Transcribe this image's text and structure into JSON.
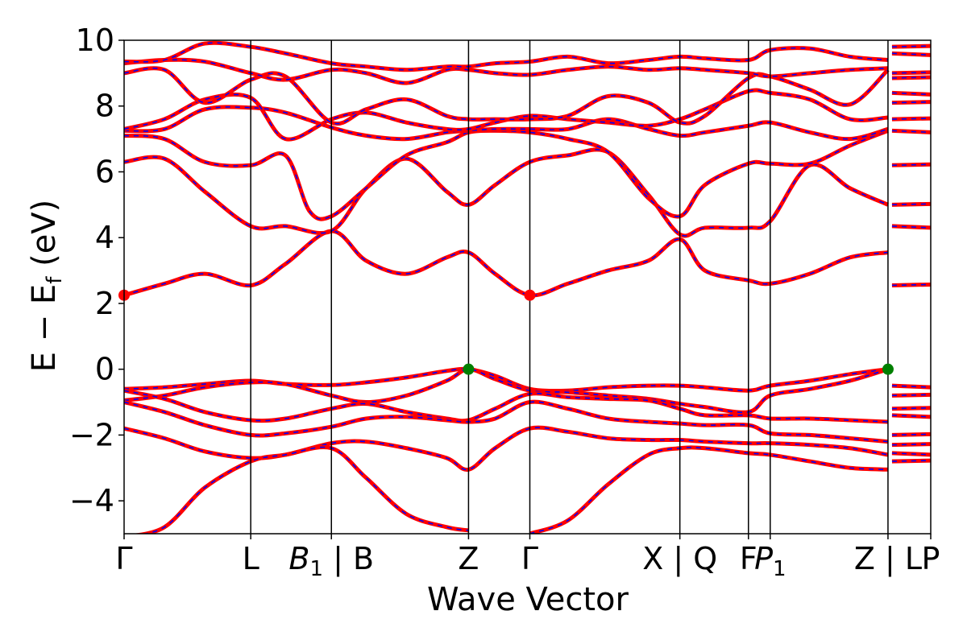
{
  "chart_data": {
    "type": "line",
    "xlabel": "Wave Vector",
    "ylabel": "E − E_f (eV)",
    "ylabel_parts": {
      "main": "E − E",
      "sub": "f",
      "unit": " (eV)"
    },
    "ylim": [
      -5,
      10
    ],
    "yticks": [
      {
        "value": 10,
        "label": "10"
      },
      {
        "value": 8,
        "label": "8"
      },
      {
        "value": 6,
        "label": "6"
      },
      {
        "value": 4,
        "label": "4"
      },
      {
        "value": 2,
        "label": "2"
      },
      {
        "value": 0,
        "label": "0"
      },
      {
        "value": -2,
        "label": "−2"
      },
      {
        "value": -4,
        "label": "−4"
      }
    ],
    "kpoints": [
      {
        "label": "Γ",
        "pos": 0.0
      },
      {
        "label": "L",
        "pos": 0.157
      },
      {
        "label": "B",
        "sub": "1",
        "suffix": " | B",
        "pos": 0.257
      },
      {
        "label": "Z",
        "pos": 0.427
      },
      {
        "label": "Γ",
        "pos": 0.503
      },
      {
        "label": "X | Q",
        "pos": 0.689
      },
      {
        "label": "F",
        "pos": 0.774
      },
      {
        "label": "P",
        "sub": "1",
        "pos": 0.801
      },
      {
        "label": "Z | L",
        "pos": 0.947
      },
      {
        "label": "P",
        "pos": 1.0
      }
    ],
    "x_range": [
      0,
      1
    ],
    "grid": false,
    "legend": "none",
    "colors": {
      "band_main": "#ff0000",
      "band_dash": "#0000ff",
      "vbm": "#007f00",
      "cbm": "#ff0000"
    },
    "series": [
      {
        "x": [
          0,
          0.05,
          0.1,
          0.157,
          0.2,
          0.257,
          0.3,
          0.35,
          0.4,
          0.427,
          0.46,
          0.503,
          0.55,
          0.6,
          0.65,
          0.689,
          0.72,
          0.774,
          0.801,
          0.85,
          0.9,
          0.947
        ],
        "y": [
          -0.6,
          -0.55,
          -0.45,
          -0.35,
          -0.45,
          -0.48,
          -0.4,
          -0.25,
          -0.05,
          0.0,
          -0.2,
          -0.6,
          -0.65,
          -0.55,
          -0.5,
          -0.5,
          -0.55,
          -0.65,
          -0.5,
          -0.35,
          -0.15,
          0.0
        ]
      },
      {
        "x": [
          0,
          0.05,
          0.1,
          0.157,
          0.2,
          0.257,
          0.3,
          0.35,
          0.4,
          0.427,
          0.46,
          0.503,
          0.55,
          0.6,
          0.65,
          0.689,
          0.72,
          0.774,
          0.801,
          0.85,
          0.9,
          0.947
        ],
        "y": [
          -0.95,
          -0.8,
          -0.55,
          -0.4,
          -0.45,
          -0.8,
          -1.0,
          -0.8,
          -0.35,
          0.0,
          -0.3,
          -0.65,
          -0.7,
          -0.8,
          -0.9,
          -1.05,
          -1.15,
          -1.3,
          -0.8,
          -0.6,
          -0.35,
          0.0
        ]
      },
      {
        "x": [
          0,
          0.05,
          0.1,
          0.157,
          0.2,
          0.257,
          0.3,
          0.35,
          0.4,
          0.427,
          0.46,
          0.503,
          0.55,
          0.6,
          0.65,
          0.689,
          0.72,
          0.774,
          0.801,
          0.85,
          0.9,
          0.947
        ],
        "y": [
          -0.65,
          -0.9,
          -1.3,
          -1.55,
          -1.5,
          -1.2,
          -1.05,
          -1.3,
          -1.5,
          -1.55,
          -1.2,
          -0.75,
          -0.85,
          -0.9,
          -0.95,
          -1.2,
          -1.4,
          -1.4,
          -1.5,
          -1.5,
          -1.55,
          -1.6
        ]
      },
      {
        "x": [
          0,
          0.05,
          0.1,
          0.157,
          0.2,
          0.257,
          0.3,
          0.35,
          0.4,
          0.427,
          0.46,
          0.503,
          0.55,
          0.6,
          0.65,
          0.689,
          0.72,
          0.774,
          0.801,
          0.85,
          0.9,
          0.947
        ],
        "y": [
          -1.0,
          -1.3,
          -1.7,
          -2.0,
          -1.95,
          -1.75,
          -1.5,
          -1.45,
          -1.55,
          -1.6,
          -1.5,
          -1.0,
          -1.2,
          -1.5,
          -1.6,
          -1.65,
          -1.7,
          -1.7,
          -1.95,
          -2.0,
          -2.1,
          -2.2
        ]
      },
      {
        "x": [
          0,
          0.05,
          0.1,
          0.157,
          0.2,
          0.257,
          0.3,
          0.35,
          0.4,
          0.427,
          0.46,
          0.503,
          0.55,
          0.6,
          0.65,
          0.689,
          0.72,
          0.774,
          0.801,
          0.85,
          0.9,
          0.947
        ],
        "y": [
          -1.8,
          -2.1,
          -2.5,
          -2.7,
          -2.6,
          -2.25,
          -2.2,
          -2.4,
          -2.7,
          -3.05,
          -2.4,
          -1.8,
          -1.9,
          -2.1,
          -2.15,
          -2.15,
          -2.2,
          -2.25,
          -2.25,
          -2.3,
          -2.4,
          -2.6
        ]
      },
      {
        "x": [
          0,
          0.05,
          0.1,
          0.157,
          0.2,
          0.257,
          0.3,
          0.35,
          0.4,
          0.427
        ],
        "y": [
          -5.1,
          -4.8,
          -3.6,
          -2.8,
          -2.6,
          -2.4,
          -3.3,
          -4.4,
          -4.8,
          -4.9
        ]
      },
      {
        "x": [
          0.503,
          0.55,
          0.6,
          0.65,
          0.689,
          0.72,
          0.774,
          0.801,
          0.85,
          0.9,
          0.947
        ],
        "y": [
          -5.0,
          -4.6,
          -3.5,
          -2.6,
          -2.4,
          -2.4,
          -2.55,
          -2.6,
          -2.8,
          -3.0,
          -3.05
        ]
      },
      {
        "x": [
          0,
          0.05,
          0.1,
          0.157,
          0.2,
          0.257,
          0.3,
          0.35,
          0.4,
          0.427,
          0.46,
          0.503,
          0.55,
          0.6,
          0.65,
          0.689,
          0.72,
          0.774,
          0.801,
          0.85,
          0.9,
          0.947
        ],
        "y": [
          2.25,
          2.6,
          2.9,
          2.55,
          3.2,
          4.2,
          3.3,
          2.9,
          3.4,
          3.55,
          2.9,
          2.25,
          2.6,
          3.0,
          3.3,
          3.95,
          3.0,
          2.7,
          2.6,
          2.9,
          3.4,
          3.55
        ]
      },
      {
        "x": [
          0,
          0.05,
          0.1,
          0.157,
          0.2,
          0.257,
          0.3,
          0.35,
          0.4,
          0.427,
          0.46,
          0.503,
          0.55,
          0.6,
          0.65,
          0.689,
          0.72,
          0.774,
          0.801,
          0.85,
          0.9,
          0.947
        ],
        "y": [
          6.3,
          6.4,
          5.4,
          4.35,
          4.35,
          4.2,
          5.5,
          6.4,
          5.4,
          5.0,
          5.6,
          6.3,
          6.5,
          6.6,
          5.3,
          4.1,
          4.3,
          4.3,
          4.5,
          6.2,
          5.5,
          5.0
        ]
      },
      {
        "x": [
          0,
          0.05,
          0.1,
          0.157,
          0.2,
          0.23,
          0.257,
          0.3,
          0.35,
          0.4,
          0.427,
          0.46,
          0.503,
          0.55,
          0.6,
          0.65,
          0.689,
          0.72,
          0.774,
          0.801,
          0.85,
          0.9,
          0.947
        ],
        "y": [
          7.1,
          7.0,
          6.3,
          6.2,
          6.5,
          4.8,
          4.65,
          5.5,
          6.5,
          6.9,
          7.2,
          7.25,
          7.2,
          7.0,
          6.6,
          5.2,
          4.65,
          5.6,
          6.25,
          6.25,
          6.25,
          6.8,
          7.25
        ]
      },
      {
        "x": [
          0,
          0.05,
          0.1,
          0.157,
          0.2,
          0.257,
          0.3,
          0.35,
          0.4,
          0.427,
          0.46,
          0.503,
          0.55,
          0.6,
          0.65,
          0.689,
          0.72,
          0.774,
          0.801,
          0.85,
          0.9,
          0.947
        ],
        "y": [
          7.25,
          7.3,
          7.9,
          7.95,
          7.8,
          7.35,
          7.1,
          7.0,
          7.2,
          7.25,
          7.3,
          7.3,
          7.3,
          7.6,
          7.3,
          7.1,
          7.2,
          7.4,
          7.5,
          7.2,
          7.0,
          7.3
        ]
      },
      {
        "x": [
          0,
          0.05,
          0.1,
          0.157,
          0.2,
          0.257,
          0.3,
          0.35,
          0.4,
          0.427,
          0.46,
          0.503,
          0.55,
          0.6,
          0.65,
          0.689,
          0.72,
          0.774,
          0.801,
          0.85,
          0.9,
          0.947
        ],
        "y": [
          7.3,
          7.6,
          8.2,
          8.25,
          7.0,
          7.6,
          7.8,
          7.5,
          7.3,
          7.3,
          7.5,
          7.7,
          7.6,
          7.5,
          7.4,
          7.6,
          7.9,
          8.45,
          8.4,
          8.2,
          7.6,
          7.65
        ]
      },
      {
        "x": [
          0,
          0.05,
          0.1,
          0.157,
          0.2,
          0.257,
          0.3,
          0.35,
          0.4,
          0.427,
          0.46,
          0.503,
          0.55,
          0.6,
          0.65,
          0.689,
          0.72,
          0.774,
          0.801,
          0.85,
          0.9,
          0.947
        ],
        "y": [
          9.0,
          9.1,
          8.1,
          8.8,
          8.9,
          7.5,
          7.9,
          8.2,
          7.7,
          7.6,
          7.6,
          7.6,
          7.7,
          8.3,
          8.1,
          7.5,
          7.7,
          8.85,
          8.9,
          8.5,
          8.05,
          9.1
        ]
      },
      {
        "x": [
          0,
          0.05,
          0.1,
          0.157,
          0.2,
          0.257,
          0.3,
          0.35,
          0.4,
          0.427,
          0.46,
          0.503,
          0.55,
          0.6,
          0.65,
          0.689,
          0.72,
          0.774,
          0.801,
          0.85,
          0.9,
          0.947
        ],
        "y": [
          9.3,
          9.4,
          9.35,
          9.0,
          8.8,
          9.1,
          9.0,
          8.7,
          9.1,
          9.1,
          9.0,
          8.95,
          9.1,
          9.2,
          9.1,
          9.15,
          9.1,
          9.0,
          8.9,
          9.0,
          9.1,
          9.15
        ]
      },
      {
        "x": [
          0,
          0.05,
          0.1,
          0.157,
          0.2,
          0.257,
          0.3,
          0.35,
          0.4,
          0.427,
          0.46,
          0.503,
          0.55,
          0.6,
          0.65,
          0.689,
          0.72,
          0.774,
          0.801,
          0.85,
          0.9,
          0.947
        ],
        "y": [
          9.35,
          9.4,
          9.9,
          9.8,
          9.6,
          9.3,
          9.2,
          9.1,
          9.2,
          9.2,
          9.3,
          9.35,
          9.5,
          9.3,
          9.4,
          9.5,
          9.45,
          9.4,
          9.7,
          9.75,
          9.5,
          9.4
        ]
      }
    ],
    "tail_levels": [
      -0.5,
      -0.8,
      -1.2,
      -1.4,
      -2.0,
      -2.3,
      -2.55,
      -2.8,
      2.55,
      4.35,
      5.0,
      6.2,
      7.25,
      7.6,
      8.1,
      8.4,
      8.85,
      9.0,
      9.6,
      9.8
    ],
    "vbm_points": [
      {
        "x": 0.427,
        "y": 0.0
      },
      {
        "x": 0.947,
        "y": 0.0
      }
    ],
    "cbm_points": [
      {
        "x": 0.0,
        "y": 2.25
      },
      {
        "x": 0.503,
        "y": 2.25
      }
    ]
  }
}
